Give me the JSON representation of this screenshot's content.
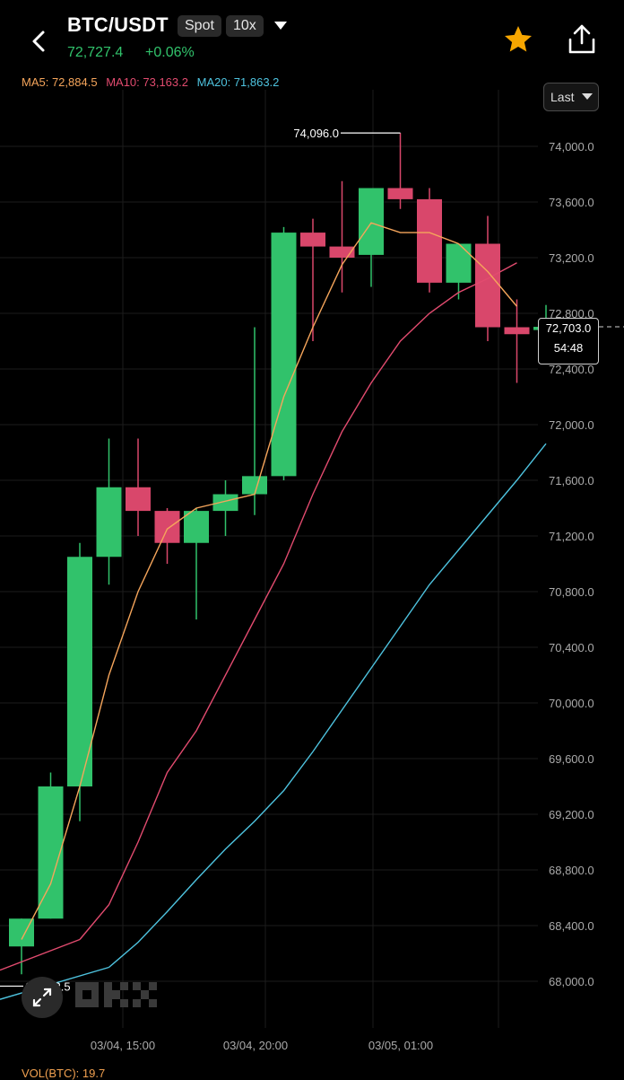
{
  "header": {
    "pair": "BTC/USDT",
    "market_type": "Spot",
    "leverage": "10x",
    "last_price": "72,727.4",
    "change": "+0.06%"
  },
  "ma": {
    "ma5": "MA5: 72,884.5",
    "ma10": "MA10: 73,163.2",
    "ma20": "MA20: 71,863.2",
    "ma5_color": "#f5a55b",
    "ma10_color": "#e24b6f",
    "ma20_color": "#4ec3df"
  },
  "price_type_select": "Last",
  "current_price_tag": {
    "price": "72,703.0",
    "countdown": "54:48"
  },
  "max_label": "74,096.0",
  "min_label": "68,042.5",
  "volume_label": "VOL(BTC): 19.7",
  "colors": {
    "up": "#31c26b",
    "down": "#d9476b",
    "star": "#f7a600"
  },
  "chart_data": {
    "type": "candlestick",
    "y_ticks": [
      "74,000.0",
      "73,600.0",
      "73,200.0",
      "72,800.0",
      "72,400.0",
      "72,000.0",
      "71,600.0",
      "71,200.0",
      "70,800.0",
      "70,400.0",
      "70,000.0",
      "69,600.0",
      "69,200.0",
      "68,800.0",
      "68,400.0",
      "68,000.0"
    ],
    "x_ticks": [
      "03/04, 15:00",
      "03/04, 20:00",
      "03/05, 01:00"
    ],
    "ylim": [
      67950,
      74300
    ],
    "candles": [
      {
        "o": 68250,
        "h": 68450,
        "l": 68050,
        "c": 68450
      },
      {
        "o": 68450,
        "h": 69500,
        "l": 68450,
        "c": 69400
      },
      {
        "o": 69400,
        "h": 71150,
        "l": 69150,
        "c": 71050
      },
      {
        "o": 71050,
        "h": 71900,
        "l": 70850,
        "c": 71550
      },
      {
        "o": 71550,
        "h": 71900,
        "l": 71200,
        "c": 71380
      },
      {
        "o": 71380,
        "h": 71400,
        "l": 71000,
        "c": 71150
      },
      {
        "o": 71150,
        "h": 71400,
        "l": 70600,
        "c": 71380
      },
      {
        "o": 71380,
        "h": 71600,
        "l": 71200,
        "c": 71500
      },
      {
        "o": 71500,
        "h": 72700,
        "l": 71350,
        "c": 71630
      },
      {
        "o": 71630,
        "h": 73420,
        "l": 71600,
        "c": 73380
      },
      {
        "o": 73380,
        "h": 73480,
        "l": 72600,
        "c": 73280
      },
      {
        "o": 73280,
        "h": 73750,
        "l": 72950,
        "c": 73200
      },
      {
        "o": 73220,
        "h": 73700,
        "l": 72990,
        "c": 73700
      },
      {
        "o": 73700,
        "h": 74096,
        "l": 73550,
        "c": 73620
      },
      {
        "o": 73620,
        "h": 73700,
        "l": 72950,
        "c": 73020
      },
      {
        "o": 73020,
        "h": 73300,
        "l": 72900,
        "c": 73300
      },
      {
        "o": 73300,
        "h": 73500,
        "l": 72600,
        "c": 72700
      },
      {
        "o": 72700,
        "h": 72900,
        "l": 72300,
        "c": 72650
      },
      {
        "o": 72680,
        "h": 72860,
        "l": 72640,
        "c": 72703
      }
    ],
    "ma5": [
      68300,
      68700,
      69400,
      70200,
      70800,
      71250,
      71400,
      71450,
      71500,
      72200,
      72700,
      73150,
      73450,
      73380,
      73380,
      73300,
      73100,
      72850
    ],
    "ma10": [
      68300,
      68550,
      69000,
      69500,
      69800,
      70200,
      70600,
      71000,
      71500,
      71950,
      72300,
      72600,
      72800,
      72950,
      73050,
      73163
    ],
    "ma20": [
      68100,
      68280,
      68500,
      68730,
      68950,
      69150,
      69370,
      69650,
      69950,
      70250,
      70550,
      70850,
      71100,
      71350,
      71600,
      71863
    ]
  }
}
